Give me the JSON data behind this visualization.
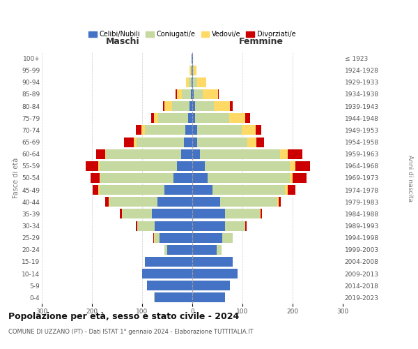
{
  "age_groups": [
    "0-4",
    "5-9",
    "10-14",
    "15-19",
    "20-24",
    "25-29",
    "30-34",
    "35-39",
    "40-44",
    "45-49",
    "50-54",
    "55-59",
    "60-64",
    "65-69",
    "70-74",
    "75-79",
    "80-84",
    "85-89",
    "90-94",
    "95-99",
    "100+"
  ],
  "birth_years": [
    "2019-2023",
    "2014-2018",
    "2009-2013",
    "2004-2008",
    "1999-2003",
    "1994-1998",
    "1989-1993",
    "1984-1988",
    "1979-1983",
    "1974-1978",
    "1969-1973",
    "1964-1968",
    "1959-1963",
    "1954-1958",
    "1949-1953",
    "1944-1948",
    "1939-1943",
    "1934-1938",
    "1929-1933",
    "1924-1928",
    "≤ 1923"
  ],
  "colors": {
    "celibi": "#4472C4",
    "coniugati": "#c5d9a0",
    "vedovi": "#FFD966",
    "divorziati": "#CC0000"
  },
  "maschi": {
    "celibi": [
      75,
      90,
      100,
      95,
      50,
      65,
      75,
      80,
      70,
      55,
      38,
      30,
      22,
      16,
      14,
      8,
      5,
      3,
      2,
      1,
      1
    ],
    "coniugati": [
      1,
      0,
      0,
      0,
      5,
      10,
      35,
      60,
      95,
      130,
      145,
      155,
      150,
      95,
      80,
      60,
      35,
      18,
      5,
      2,
      0
    ],
    "vedovi": [
      0,
      0,
      0,
      0,
      0,
      1,
      0,
      0,
      1,
      2,
      2,
      2,
      2,
      5,
      8,
      8,
      15,
      10,
      5,
      2,
      0
    ],
    "divorziati": [
      0,
      0,
      0,
      0,
      0,
      2,
      2,
      4,
      8,
      12,
      18,
      25,
      18,
      20,
      10,
      6,
      3,
      2,
      0,
      0,
      0
    ]
  },
  "femmine": {
    "celibi": [
      65,
      75,
      90,
      80,
      48,
      60,
      65,
      65,
      55,
      40,
      30,
      25,
      15,
      10,
      10,
      5,
      5,
      3,
      2,
      1,
      1
    ],
    "coniugati": [
      0,
      0,
      0,
      0,
      10,
      20,
      40,
      70,
      115,
      145,
      165,
      170,
      160,
      100,
      88,
      68,
      38,
      18,
      8,
      2,
      0
    ],
    "vedovi": [
      0,
      0,
      0,
      0,
      0,
      0,
      1,
      1,
      2,
      5,
      5,
      10,
      15,
      18,
      28,
      32,
      32,
      30,
      18,
      5,
      0
    ],
    "divorziati": [
      0,
      0,
      0,
      0,
      0,
      1,
      2,
      3,
      5,
      15,
      28,
      30,
      30,
      15,
      12,
      10,
      5,
      2,
      0,
      0,
      0
    ]
  },
  "xlim": 300,
  "title": "Popolazione per età, sesso e stato civile - 2024",
  "subtitle": "COMUNE DI UZZANO (PT) - Dati ISTAT 1° gennaio 2024 - Elaborazione TUTTITALIA.IT",
  "ylabel_left": "Fasce di età",
  "ylabel_right": "Anni di nascita",
  "xlabel_left": "Maschi",
  "xlabel_right": "Femmine",
  "legend_labels": [
    "Celibi/Nubili",
    "Coniugati/e",
    "Vedovi/e",
    "Divorziati/e"
  ],
  "background_color": "#ffffff",
  "grid_color": "#cccccc",
  "bar_height": 0.82
}
